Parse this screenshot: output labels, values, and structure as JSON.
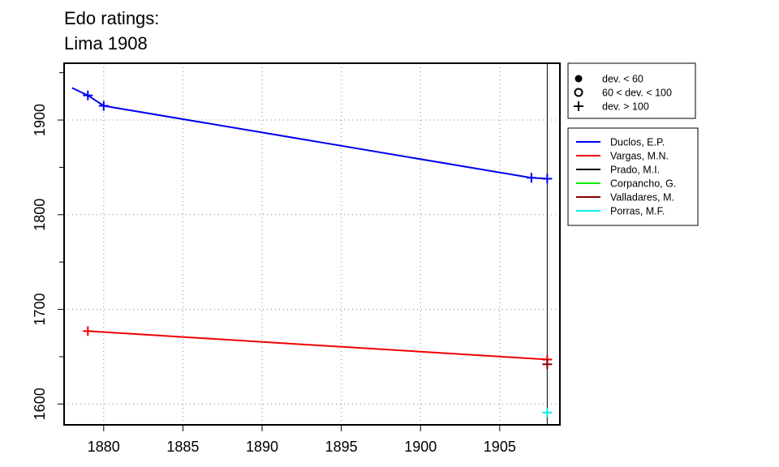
{
  "chart_data": {
    "type": "line",
    "title_lines": [
      "Edo ratings:",
      "Lima 1908"
    ],
    "xlabel": "",
    "ylabel": "",
    "xlim": [
      1877.5,
      1908.8
    ],
    "ylim": [
      1578,
      1960
    ],
    "x_ticks": [
      1880,
      1885,
      1890,
      1895,
      1900,
      1905
    ],
    "y_ticks": [
      1600,
      1700,
      1800,
      1900
    ],
    "grid": true,
    "event_line_x": 1908,
    "marker_legend": [
      {
        "label": "dev. < 60",
        "marker": "dot"
      },
      {
        "label": "60 < dev. < 100",
        "marker": "circle"
      },
      {
        "label": "dev. > 100",
        "marker": "plus"
      }
    ],
    "series": [
      {
        "name": "Duclos, E.P.",
        "color": "#0000ee",
        "line": [
          [
            1878,
            1934
          ],
          [
            1879,
            1926
          ],
          [
            1880,
            1915
          ],
          [
            1907,
            1839
          ],
          [
            1908,
            1838
          ]
        ],
        "markers": [
          [
            1879,
            1926
          ],
          [
            1880,
            1915
          ],
          [
            1907,
            1839
          ],
          [
            1908,
            1838
          ]
        ]
      },
      {
        "name": "Vargas, M.N.",
        "color": "#ee0000",
        "line": [
          [
            1879,
            1677
          ],
          [
            1908,
            1647
          ]
        ],
        "markers": [
          [
            1879,
            1677
          ],
          [
            1908,
            1647
          ]
        ]
      },
      {
        "name": "Prado, M.I.",
        "color": "#000000",
        "line": [],
        "markers": []
      },
      {
        "name": "Corpancho, G.",
        "color": "#00ee00",
        "line": [],
        "markers": []
      },
      {
        "name": "Valladares, M.",
        "color": "#8b0000",
        "line": [],
        "markers": [
          [
            1908,
            1642
          ]
        ]
      },
      {
        "name": "Porras, M.F.",
        "color": "#00eeee",
        "line": [],
        "markers": [
          [
            1908,
            1591
          ]
        ]
      }
    ]
  }
}
